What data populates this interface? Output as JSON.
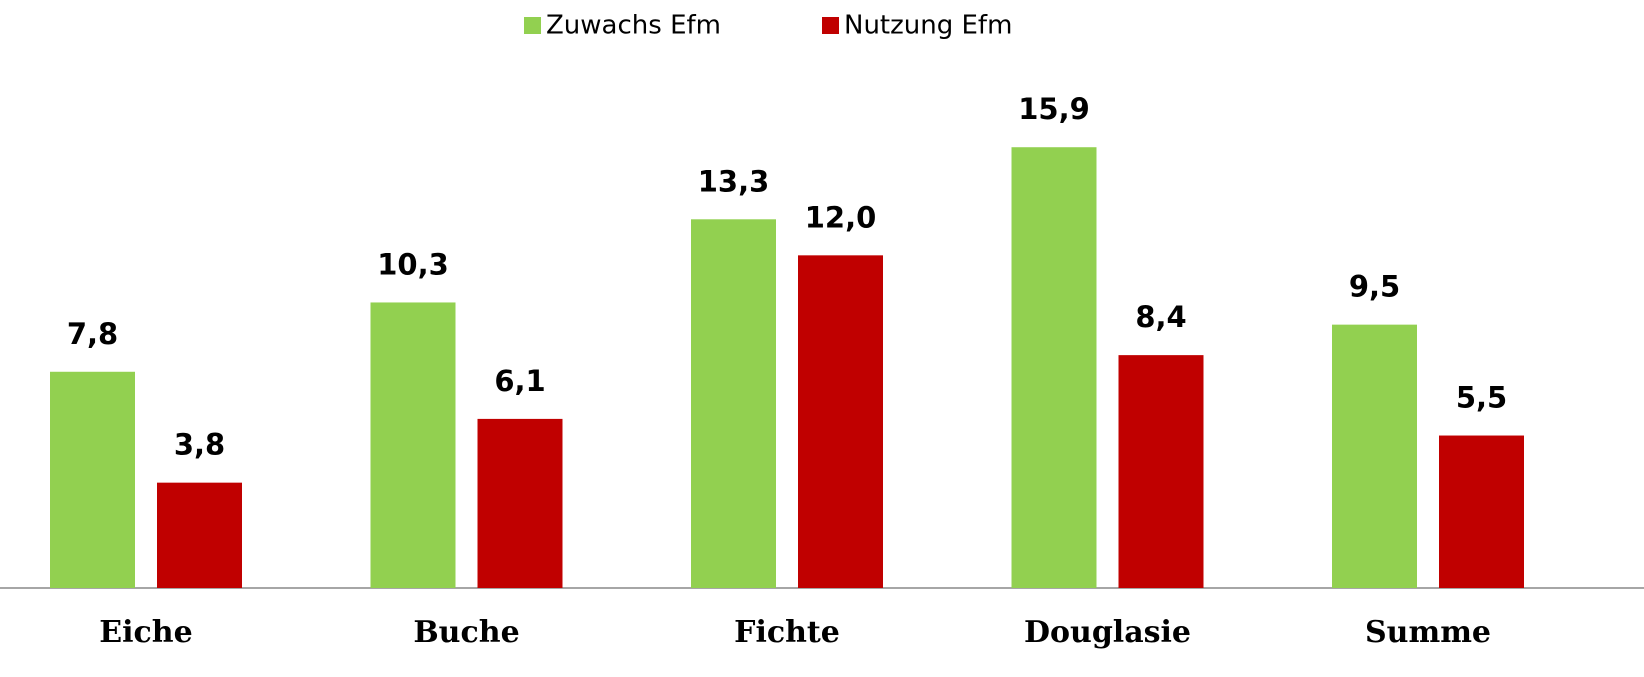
{
  "chart_data": {
    "type": "bar",
    "categories": [
      "Eiche",
      "Buche",
      "Fichte",
      "Douglasie",
      "Summe"
    ],
    "series": [
      {
        "name": "Zuwachs Efm",
        "color": "#92d050",
        "values": [
          7.8,
          10.3,
          13.3,
          15.9,
          9.5
        ],
        "value_labels": [
          "7,8",
          "10,3",
          "13,3",
          "15,9",
          "9,5"
        ]
      },
      {
        "name": "Nutzung Efm",
        "color": "#c00000",
        "values": [
          3.8,
          6.1,
          12.0,
          8.4,
          5.5
        ],
        "value_labels": [
          "3,8",
          "6,1",
          "12,0",
          "8,4",
          "5,5"
        ]
      }
    ],
    "ylim": [
      0,
      18
    ],
    "legend": "top"
  }
}
